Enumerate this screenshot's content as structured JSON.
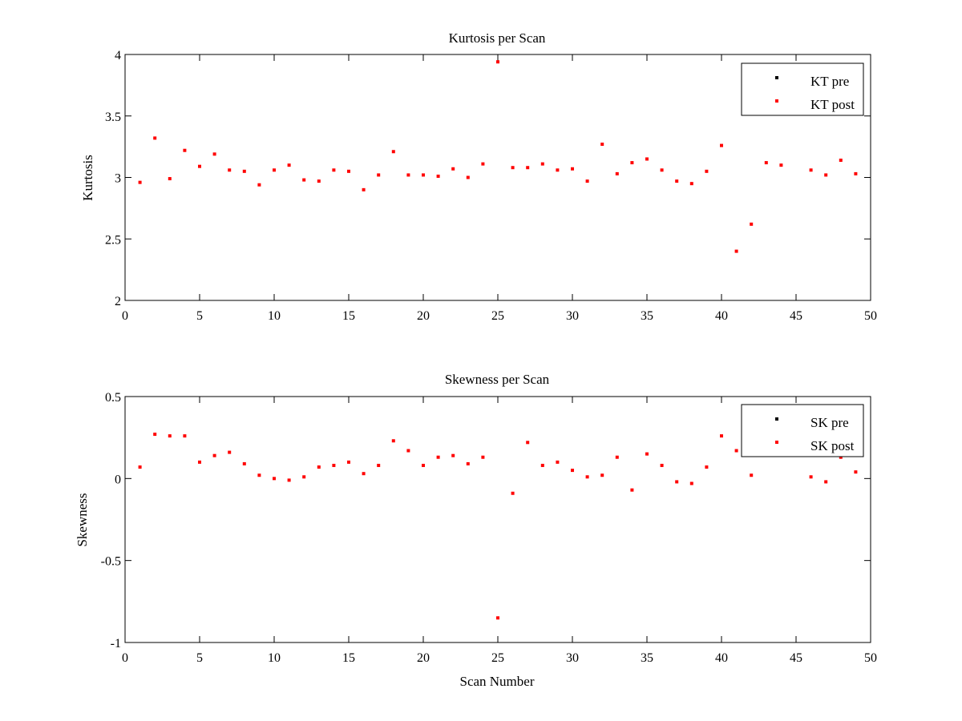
{
  "colors": {
    "pre": "#000000",
    "post": "#ff0000",
    "axis": "#000000",
    "background": "#ffffff"
  },
  "chart_data": [
    {
      "type": "scatter",
      "title": "Kurtosis per Scan",
      "xlabel": "",
      "ylabel": "Kurtosis",
      "xlim": [
        0,
        50
      ],
      "ylim": [
        2,
        4
      ],
      "xticks": [
        "0",
        "5",
        "10",
        "15",
        "20",
        "25",
        "30",
        "35",
        "40",
        "45",
        "50"
      ],
      "yticks": [
        "2",
        "2.5",
        "3",
        "3.5",
        "4"
      ],
      "grid": false,
      "legend_position": "top-right",
      "series": [
        {
          "name": "KT pre",
          "color": "#000000",
          "x": [],
          "y": []
        },
        {
          "name": "KT post",
          "color": "#ff0000",
          "x": [
            1,
            2,
            3,
            4,
            5,
            6,
            7,
            8,
            9,
            10,
            11,
            12,
            13,
            14,
            15,
            16,
            17,
            18,
            19,
            20,
            21,
            22,
            23,
            24,
            25,
            26,
            27,
            28,
            29,
            30,
            31,
            32,
            33,
            34,
            35,
            36,
            37,
            38,
            39,
            40,
            41,
            42,
            43,
            44,
            46,
            47,
            48,
            49
          ],
          "y": [
            2.96,
            3.32,
            2.99,
            3.22,
            3.09,
            3.19,
            3.06,
            3.05,
            2.94,
            3.06,
            3.1,
            2.98,
            2.97,
            3.06,
            3.05,
            2.9,
            3.02,
            3.21,
            3.02,
            3.02,
            3.01,
            3.07,
            3.0,
            3.11,
            3.94,
            3.08,
            3.08,
            3.11,
            3.06,
            3.07,
            2.97,
            3.27,
            3.03,
            3.12,
            3.15,
            3.06,
            2.97,
            2.95,
            3.05,
            3.26,
            2.4,
            2.62,
            3.12,
            3.1,
            3.06,
            3.02,
            3.14,
            3.03
          ]
        }
      ]
    },
    {
      "type": "scatter",
      "title": "Skewness per Scan",
      "xlabel": "Scan Number",
      "ylabel": "Skewness",
      "xlim": [
        0,
        50
      ],
      "ylim": [
        -1,
        0.5
      ],
      "xticks": [
        "0",
        "5",
        "10",
        "15",
        "20",
        "25",
        "30",
        "35",
        "40",
        "45",
        "50"
      ],
      "yticks": [
        "-1",
        "-0.5",
        "0",
        "0.5"
      ],
      "grid": false,
      "legend_position": "top-right",
      "series": [
        {
          "name": "SK pre",
          "color": "#000000",
          "x": [],
          "y": []
        },
        {
          "name": "SK post",
          "color": "#ff0000",
          "x": [
            1,
            2,
            3,
            4,
            5,
            6,
            7,
            8,
            9,
            10,
            11,
            12,
            13,
            14,
            15,
            16,
            17,
            18,
            19,
            20,
            21,
            22,
            23,
            24,
            25,
            26,
            27,
            28,
            29,
            30,
            31,
            32,
            33,
            34,
            35,
            36,
            37,
            38,
            39,
            40,
            41,
            42,
            46,
            47,
            48,
            49
          ],
          "y": [
            0.07,
            0.27,
            0.26,
            0.26,
            0.1,
            0.14,
            0.16,
            0.09,
            0.02,
            0.0,
            -0.01,
            0.01,
            0.07,
            0.08,
            0.1,
            0.03,
            0.08,
            0.23,
            0.17,
            0.08,
            0.13,
            0.14,
            0.09,
            0.13,
            -0.85,
            -0.09,
            0.22,
            0.08,
            0.1,
            0.05,
            0.01,
            0.02,
            0.13,
            -0.07,
            0.15,
            0.08,
            -0.02,
            -0.03,
            0.07,
            0.26,
            0.17,
            0.02,
            0.01,
            -0.02,
            0.13,
            0.04
          ]
        }
      ]
    }
  ]
}
